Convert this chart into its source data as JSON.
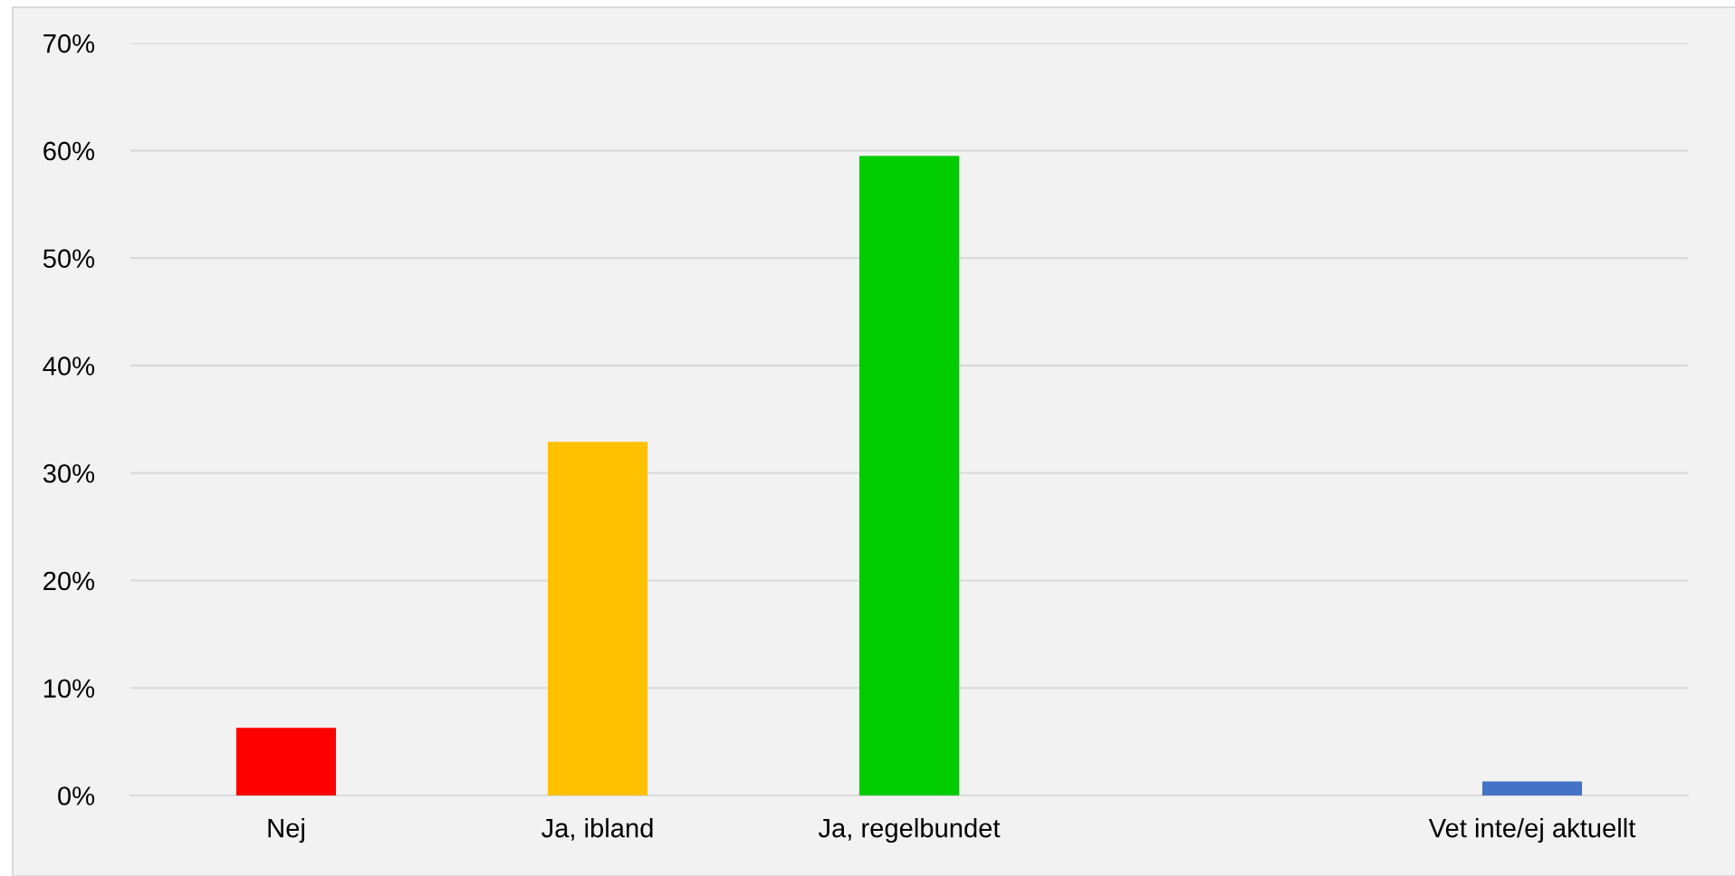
{
  "chart_data": {
    "type": "bar",
    "categories": [
      "Nej",
      "Ja, ibland",
      "Ja, regelbundet",
      null,
      "Vet inte/ej aktuellt"
    ],
    "values": [
      6.3,
      32.9,
      59.5,
      null,
      1.3
    ],
    "colors": [
      "#ff0000",
      "#ffc000",
      "#00cc00",
      null,
      "#4472c4"
    ],
    "ylim": [
      0,
      70
    ],
    "yticks": [
      {
        "value": 0,
        "label": "0%"
      },
      {
        "value": 10,
        "label": "10%"
      },
      {
        "value": 20,
        "label": "20%"
      },
      {
        "value": 30,
        "label": "30%"
      },
      {
        "value": 40,
        "label": "40%"
      },
      {
        "value": 50,
        "label": "50%"
      },
      {
        "value": 60,
        "label": "60%"
      },
      {
        "value": 70,
        "label": "70%"
      }
    ],
    "grid": "y",
    "legend": false
  }
}
